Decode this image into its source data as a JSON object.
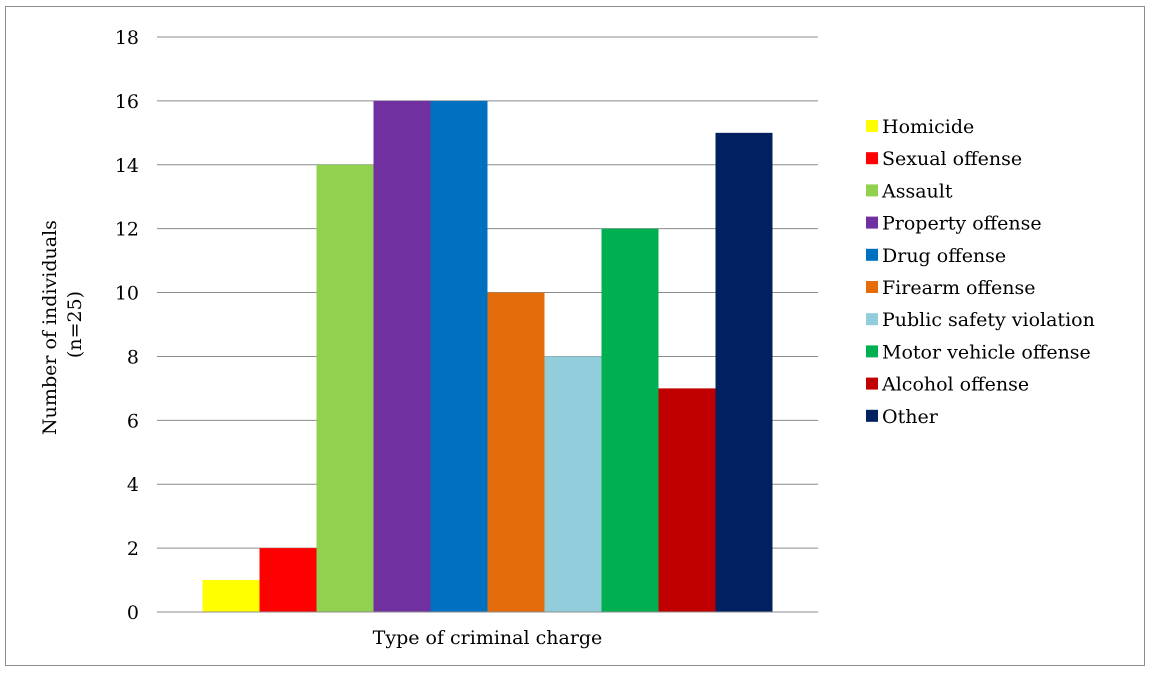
{
  "chart_data": {
    "type": "bar",
    "xlabel": "Type of criminal charge",
    "ylabel_lines": [
      "Number of individuals",
      "(n=25)"
    ],
    "ylim": [
      0,
      18
    ],
    "yticks": [
      0,
      2,
      4,
      6,
      8,
      10,
      12,
      14,
      16,
      18
    ],
    "grid": true,
    "legend_position": "right",
    "series": [
      {
        "name": "Homicide",
        "value": 1,
        "color": "#FFFF00"
      },
      {
        "name": "Sexual offense",
        "value": 2,
        "color": "#FF0000"
      },
      {
        "name": "Assault",
        "value": 14,
        "color": "#92D050"
      },
      {
        "name": "Property offense",
        "value": 16,
        "color": "#7030A0"
      },
      {
        "name": "Drug offense",
        "value": 16,
        "color": "#0070C0"
      },
      {
        "name": "Firearm offense",
        "value": 10,
        "color": "#E46C0A"
      },
      {
        "name": "Public safety violation",
        "value": 8,
        "color": "#92CDDC"
      },
      {
        "name": "Motor vehicle offense",
        "value": 12,
        "color": "#00B050"
      },
      {
        "name": "Alcohol offense",
        "value": 7,
        "color": "#C00000"
      },
      {
        "name": "Other",
        "value": 15,
        "color": "#002060"
      }
    ]
  }
}
